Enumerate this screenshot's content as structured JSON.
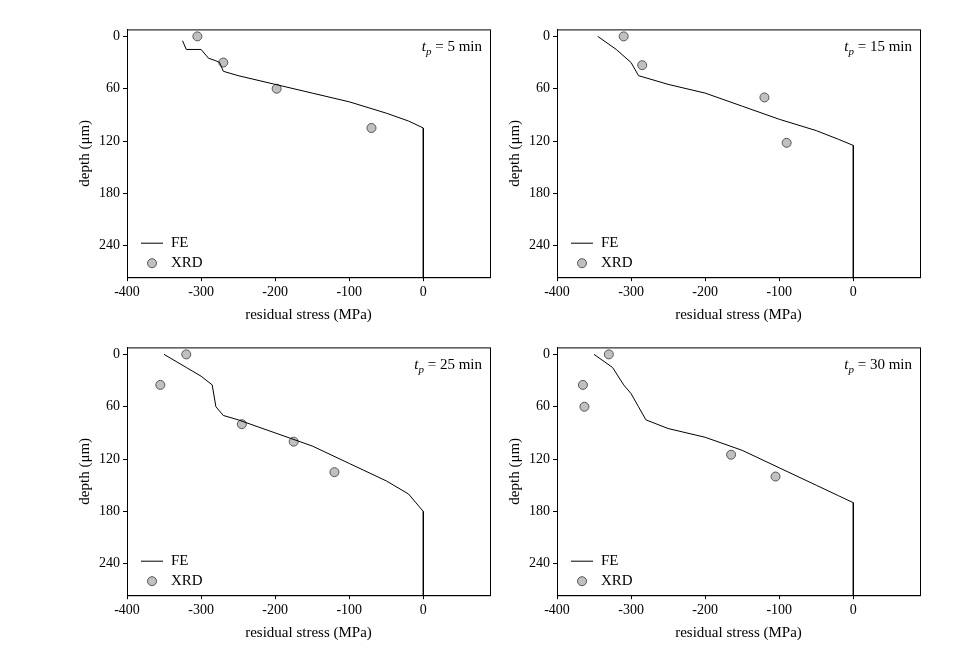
{
  "chart_data": [
    {
      "type": "line",
      "annotation": "tp = 5 min",
      "xlabel": "residual stress (MPa)",
      "ylabel": "depth (μm)",
      "xlim": [
        -400,
        90
      ],
      "xticks": [
        -400,
        -300,
        -200,
        -100,
        0
      ],
      "ylim": [
        -8,
        276
      ],
      "yticks": [
        0,
        60,
        120,
        180,
        240
      ],
      "grid": false,
      "legend": "lower left",
      "series": [
        {
          "name": "FE",
          "type": "line",
          "color": "#000000",
          "marker": "none",
          "line_style": "solid",
          "x": [
            -325,
            -320,
            -300,
            -290,
            -280,
            -275,
            -270,
            -250,
            -200,
            -150,
            -100,
            -50,
            -20,
            0,
            0
          ],
          "values": [
            5,
            15,
            15,
            25,
            28,
            30,
            40,
            45,
            55,
            65,
            75,
            88,
            97,
            105,
            276
          ]
        },
        {
          "name": "XRD",
          "type": "scatter",
          "color": "#c0c0c0",
          "marker": "circle",
          "x": [
            -305,
            -270,
            -198,
            -70
          ],
          "values": [
            0,
            30,
            60,
            105
          ]
        }
      ]
    },
    {
      "type": "line",
      "annotation": "tp = 15 min",
      "xlabel": "residual stress (MPa)",
      "ylabel": "depth (μm)",
      "xlim": [
        -400,
        90
      ],
      "xticks": [
        -400,
        -300,
        -200,
        -100,
        0
      ],
      "ylim": [
        -8,
        276
      ],
      "yticks": [
        0,
        60,
        120,
        180,
        240
      ],
      "grid": false,
      "legend": "lower left",
      "series": [
        {
          "name": "FE",
          "type": "line",
          "color": "#000000",
          "marker": "none",
          "line_style": "solid",
          "x": [
            -345,
            -320,
            -300,
            -290,
            -250,
            -200,
            -150,
            -100,
            -50,
            -20,
            0,
            0
          ],
          "values": [
            0,
            15,
            30,
            45,
            55,
            65,
            80,
            95,
            108,
            118,
            125,
            276
          ]
        },
        {
          "name": "XRD",
          "type": "scatter",
          "color": "#c0c0c0",
          "marker": "circle",
          "x": [
            -310,
            -285,
            -120,
            -90
          ],
          "values": [
            0,
            33,
            70,
            122
          ]
        }
      ]
    },
    {
      "type": "line",
      "annotation": "tp = 25 min",
      "xlabel": "residual stress (MPa)",
      "ylabel": "depth (μm)",
      "xlim": [
        -400,
        90
      ],
      "xticks": [
        -400,
        -300,
        -200,
        -100,
        0
      ],
      "ylim": [
        -8,
        276
      ],
      "yticks": [
        0,
        60,
        120,
        180,
        240
      ],
      "grid": false,
      "legend": "lower left",
      "series": [
        {
          "name": "FE",
          "type": "line",
          "color": "#000000",
          "marker": "none",
          "line_style": "solid",
          "x": [
            -350,
            -320,
            -300,
            -285,
            -280,
            -270,
            -250,
            -200,
            -150,
            -100,
            -50,
            -20,
            0,
            0
          ],
          "values": [
            0,
            15,
            25,
            35,
            60,
            70,
            75,
            90,
            105,
            125,
            145,
            160,
            180,
            276
          ]
        },
        {
          "name": "XRD",
          "type": "scatter",
          "color": "#c0c0c0",
          "marker": "circle",
          "x": [
            -320,
            -355,
            -245,
            -175,
            -120
          ],
          "values": [
            0,
            35,
            80,
            100,
            135
          ]
        }
      ]
    },
    {
      "type": "line",
      "annotation": "tp = 30 min",
      "xlabel": "residual stress (MPa)",
      "ylabel": "depth (μm)",
      "xlim": [
        -400,
        90
      ],
      "xticks": [
        -400,
        -300,
        -200,
        -100,
        0
      ],
      "ylim": [
        -8,
        276
      ],
      "yticks": [
        0,
        60,
        120,
        180,
        240
      ],
      "grid": false,
      "legend": "lower left",
      "series": [
        {
          "name": "FE",
          "type": "line",
          "color": "#000000",
          "marker": "none",
          "line_style": "solid",
          "x": [
            -350,
            -325,
            -310,
            -300,
            -290,
            -280,
            -250,
            -200,
            -150,
            -100,
            -50,
            -20,
            0,
            0
          ],
          "values": [
            0,
            15,
            35,
            45,
            60,
            75,
            85,
            95,
            110,
            130,
            150,
            162,
            170,
            276
          ]
        },
        {
          "name": "XRD",
          "type": "scatter",
          "color": "#c0c0c0",
          "marker": "circle",
          "x": [
            -330,
            -365,
            -363,
            -165,
            -105
          ],
          "values": [
            0,
            35,
            60,
            115,
            140
          ]
        }
      ]
    }
  ]
}
